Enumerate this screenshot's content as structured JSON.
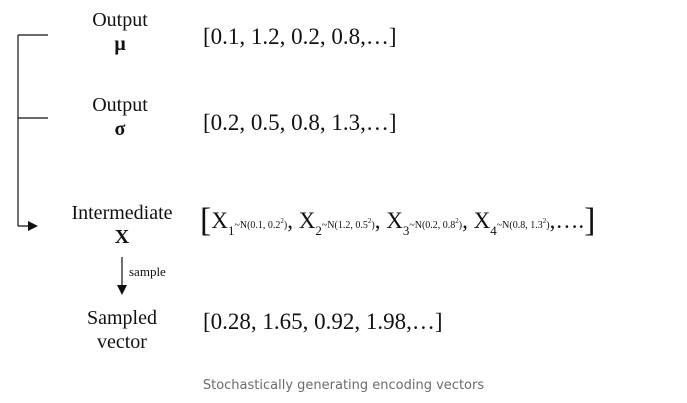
{
  "outputs": [
    {
      "label": "Output",
      "symbol": "μ",
      "values": "[0.1, 1.2, 0.2, 0.8,…]"
    },
    {
      "label": "Output",
      "symbol": "σ",
      "values": "[0.2, 0.5, 0.8, 1.3,…]"
    }
  ],
  "intermediate": {
    "label": "Intermediate",
    "symbol": "X",
    "open_bracket": "[",
    "close_bracket": "]",
    "terms": [
      {
        "var": "X",
        "sub": "1",
        "dist_prefix": "~N(0.1, 0.2",
        "dist_exp": "2",
        "dist_suffix": ")",
        "sep": ","
      },
      {
        "var": "X",
        "sub": "2",
        "dist_prefix": "~N(1.2, 0.5",
        "dist_exp": "2",
        "dist_suffix": ")",
        "sep": ","
      },
      {
        "var": "X",
        "sub": "3",
        "dist_prefix": "~N(0.2, 0.8",
        "dist_exp": "2",
        "dist_suffix": ")",
        "sep": ","
      },
      {
        "var": "X",
        "sub": "4",
        "dist_prefix": "~N(0.8, 1.3",
        "dist_exp": "2",
        "dist_suffix": ")",
        "sep": ",…."
      }
    ]
  },
  "sample_arrow_label": "sample",
  "sampled": {
    "label_line1": "Sampled",
    "label_line2": "vector",
    "values": "[0.28, 1.65, 0.92, 1.98,…]"
  },
  "caption": "Stochastically generating encoding vectors"
}
